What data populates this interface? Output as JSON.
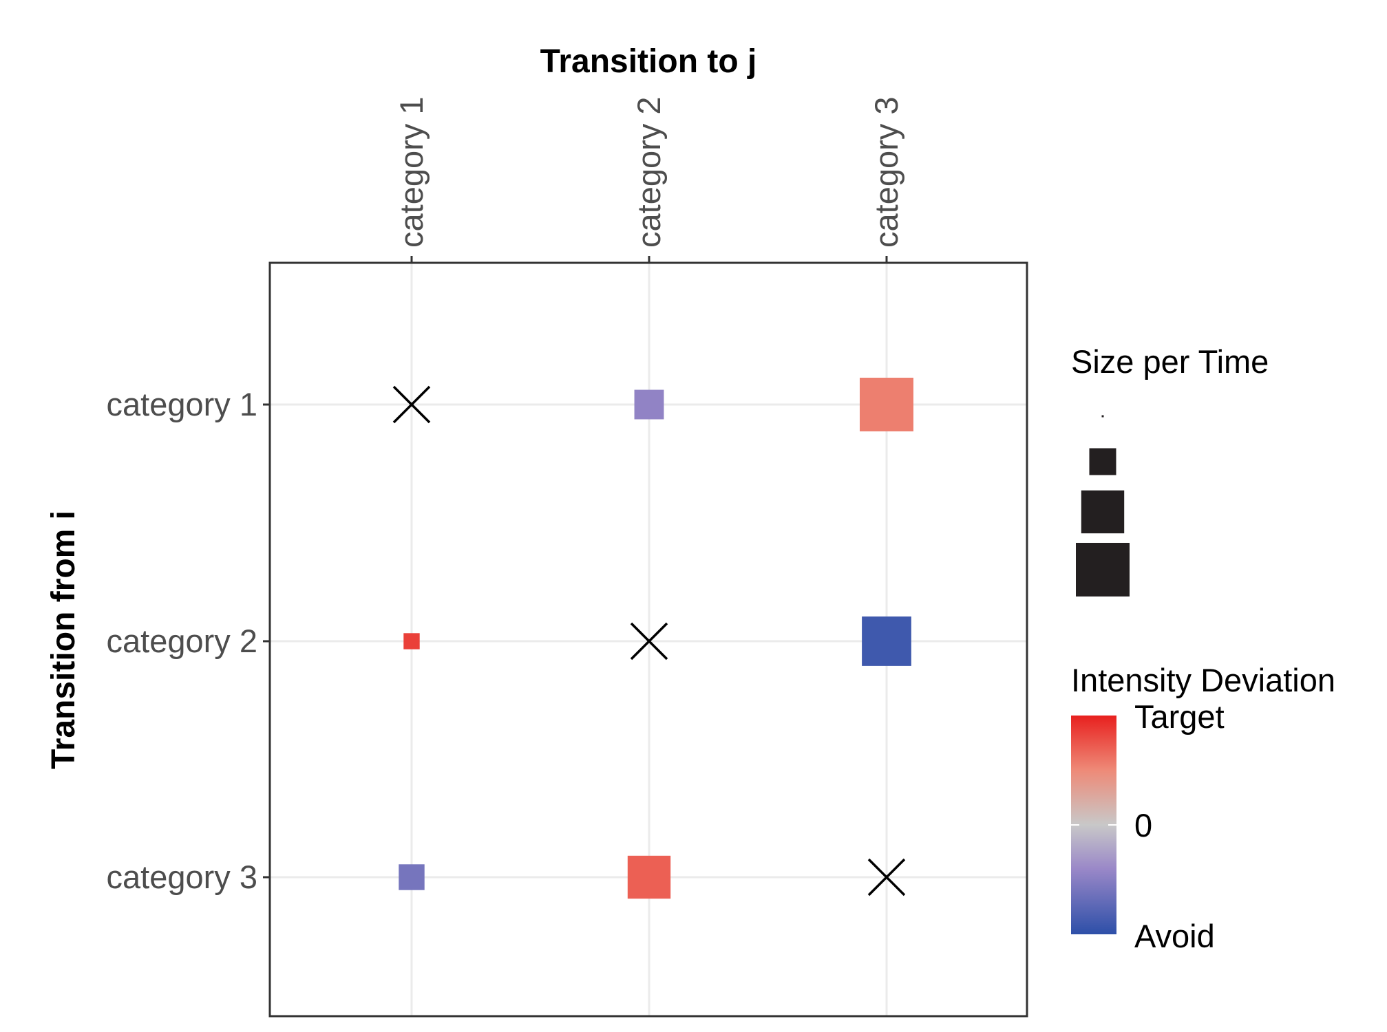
{
  "chart_data": {
    "type": "heatmap",
    "title": "",
    "xlabel": "Transition to j",
    "ylabel": "Transition from i",
    "x_categories": [
      "category 1",
      "category 2",
      "category 3"
    ],
    "y_categories": [
      "category 1",
      "category 2",
      "category 3"
    ],
    "cells": [
      {
        "from": "category 1",
        "to": "category 1",
        "diagonal": true,
        "size": null,
        "deviation": null
      },
      {
        "from": "category 1",
        "to": "category 2",
        "diagonal": false,
        "size": 0.55,
        "deviation": -0.45
      },
      {
        "from": "category 1",
        "to": "category 3",
        "diagonal": false,
        "size": 1.0,
        "deviation": 0.55
      },
      {
        "from": "category 2",
        "to": "category 1",
        "diagonal": false,
        "size": 0.3,
        "deviation": 0.85
      },
      {
        "from": "category 2",
        "to": "category 2",
        "diagonal": true,
        "size": null,
        "deviation": null
      },
      {
        "from": "category 2",
        "to": "category 3",
        "diagonal": false,
        "size": 0.92,
        "deviation": -0.9
      },
      {
        "from": "category 3",
        "to": "category 1",
        "diagonal": false,
        "size": 0.48,
        "deviation": -0.6
      },
      {
        "from": "category 3",
        "to": "category 2",
        "diagonal": false,
        "size": 0.8,
        "deviation": 0.7
      },
      {
        "from": "category 3",
        "to": "category 3",
        "diagonal": true,
        "size": null,
        "deviation": null
      }
    ],
    "size_legend": {
      "title": "Size per Time",
      "levels": [
        0.02,
        0.5,
        0.8,
        1.0
      ]
    },
    "color_legend": {
      "title": "Intensity Deviation",
      "labels": {
        "top": "Target",
        "mid": "0",
        "bottom": "Avoid"
      },
      "colors": {
        "high": "#e8201e",
        "mid": "#c8c8c8",
        "low": "#2d4fa8"
      }
    },
    "grid": true
  }
}
